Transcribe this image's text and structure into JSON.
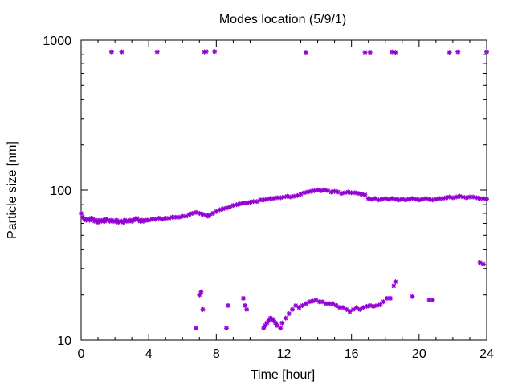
{
  "chart_data": {
    "type": "scatter",
    "title": "Modes location (5/9/1)",
    "xlabel": "Time [hour]",
    "ylabel": "Particle size [nm]",
    "xlim": [
      0,
      24
    ],
    "ylim": [
      10,
      1000
    ],
    "yscale": "log",
    "grid": false,
    "legend": "none",
    "marker_color": "#9400d3",
    "x_ticks": [
      0,
      4,
      8,
      12,
      16,
      20,
      24
    ],
    "x_tick_labels": [
      "0",
      "4",
      "8",
      "12",
      "16",
      "20",
      "24"
    ],
    "y_ticks": [
      10,
      100,
      1000
    ],
    "y_tick_labels": [
      "10",
      "100",
      "1000"
    ],
    "series": [
      {
        "points": [
          [
            0.0,
            70
          ],
          [
            0.1,
            66
          ],
          [
            0.2,
            64
          ],
          [
            0.3,
            63
          ],
          [
            0.4,
            64
          ],
          [
            0.5,
            63
          ],
          [
            0.6,
            65
          ],
          [
            0.7,
            64
          ],
          [
            0.8,
            62
          ],
          [
            0.9,
            63
          ],
          [
            1.0,
            61
          ],
          [
            1.1,
            63
          ],
          [
            1.2,
            62
          ],
          [
            1.3,
            63
          ],
          [
            1.4,
            62
          ],
          [
            1.5,
            64
          ],
          [
            1.6,
            63
          ],
          [
            1.7,
            62
          ],
          [
            1.8,
            63
          ],
          [
            1.9,
            62
          ],
          [
            2.0,
            62
          ],
          [
            2.1,
            63
          ],
          [
            2.2,
            61
          ],
          [
            2.3,
            62
          ],
          [
            2.4,
            62
          ],
          [
            2.5,
            61
          ],
          [
            2.6,
            63
          ],
          [
            2.7,
            62
          ],
          [
            2.8,
            62
          ],
          [
            2.9,
            63
          ],
          [
            3.0,
            62
          ],
          [
            3.1,
            63
          ],
          [
            3.2,
            64
          ],
          [
            3.3,
            65
          ],
          [
            3.4,
            63
          ],
          [
            3.5,
            62
          ],
          [
            3.6,
            63
          ],
          [
            3.7,
            62
          ],
          [
            3.8,
            63
          ],
          [
            3.9,
            63
          ],
          [
            4.0,
            63
          ],
          [
            4.2,
            64
          ],
          [
            4.4,
            64
          ],
          [
            4.6,
            65
          ],
          [
            4.8,
            64
          ],
          [
            5.0,
            65
          ],
          [
            5.2,
            65
          ],
          [
            5.4,
            66
          ],
          [
            5.6,
            66
          ],
          [
            5.8,
            66
          ],
          [
            6.0,
            67
          ],
          [
            6.2,
            67
          ],
          [
            6.4,
            69
          ],
          [
            6.6,
            70
          ],
          [
            6.8,
            71
          ],
          [
            7.0,
            70
          ],
          [
            7.2,
            69
          ],
          [
            7.4,
            68
          ],
          [
            7.5,
            67
          ],
          [
            7.6,
            68
          ],
          [
            7.8,
            70
          ],
          [
            8.0,
            72
          ],
          [
            8.2,
            74
          ],
          [
            8.4,
            75
          ],
          [
            8.6,
            76
          ],
          [
            8.8,
            77
          ],
          [
            9.0,
            79
          ],
          [
            9.2,
            80
          ],
          [
            9.4,
            81
          ],
          [
            9.6,
            82
          ],
          [
            9.8,
            82
          ],
          [
            10.0,
            83
          ],
          [
            10.2,
            84
          ],
          [
            10.4,
            84
          ],
          [
            10.6,
            86
          ],
          [
            10.8,
            86
          ],
          [
            11.0,
            87
          ],
          [
            11.2,
            88
          ],
          [
            11.4,
            88
          ],
          [
            11.6,
            89
          ],
          [
            11.8,
            89
          ],
          [
            12.0,
            90
          ],
          [
            12.2,
            91
          ],
          [
            12.4,
            90
          ],
          [
            12.6,
            91
          ],
          [
            12.8,
            92
          ],
          [
            13.0,
            94
          ],
          [
            13.2,
            96
          ],
          [
            13.4,
            97
          ],
          [
            13.6,
            98
          ],
          [
            13.8,
            99
          ],
          [
            14.0,
            100
          ],
          [
            14.2,
            99
          ],
          [
            14.4,
            100
          ],
          [
            14.6,
            99
          ],
          [
            14.8,
            97
          ],
          [
            15.0,
            98
          ],
          [
            15.2,
            97
          ],
          [
            15.4,
            95
          ],
          [
            15.6,
            96
          ],
          [
            15.8,
            97
          ],
          [
            16.0,
            96
          ],
          [
            16.2,
            96
          ],
          [
            16.4,
            95
          ],
          [
            16.6,
            94
          ],
          [
            16.8,
            93
          ],
          [
            17.0,
            88
          ],
          [
            17.2,
            87
          ],
          [
            17.4,
            88
          ],
          [
            17.6,
            86
          ],
          [
            17.8,
            87
          ],
          [
            18.0,
            88
          ],
          [
            18.2,
            87
          ],
          [
            18.4,
            88
          ],
          [
            18.6,
            87
          ],
          [
            18.8,
            86
          ],
          [
            19.0,
            87
          ],
          [
            19.2,
            86
          ],
          [
            19.4,
            87
          ],
          [
            19.6,
            88
          ],
          [
            19.8,
            87
          ],
          [
            20.0,
            86
          ],
          [
            20.2,
            87
          ],
          [
            20.4,
            88
          ],
          [
            20.6,
            87
          ],
          [
            20.8,
            86
          ],
          [
            21.0,
            87
          ],
          [
            21.2,
            88
          ],
          [
            21.4,
            88
          ],
          [
            21.6,
            89
          ],
          [
            21.8,
            90
          ],
          [
            22.0,
            89
          ],
          [
            22.2,
            90
          ],
          [
            22.4,
            91
          ],
          [
            22.6,
            90
          ],
          [
            22.8,
            89
          ],
          [
            23.0,
            90
          ],
          [
            23.2,
            90
          ],
          [
            23.4,
            89
          ],
          [
            23.6,
            88
          ],
          [
            23.8,
            88
          ],
          [
            24.0,
            87
          ],
          [
            1.8,
            835
          ],
          [
            2.4,
            835
          ],
          [
            4.5,
            835
          ],
          [
            7.3,
            835
          ],
          [
            7.4,
            840
          ],
          [
            7.9,
            840
          ],
          [
            13.3,
            830
          ],
          [
            16.8,
            830
          ],
          [
            17.1,
            830
          ],
          [
            18.4,
            835
          ],
          [
            18.6,
            830
          ],
          [
            21.8,
            830
          ],
          [
            22.3,
            835
          ],
          [
            24.0,
            835
          ],
          [
            6.8,
            12
          ],
          [
            7.0,
            20
          ],
          [
            7.1,
            21
          ],
          [
            7.2,
            16
          ],
          [
            8.6,
            12
          ],
          [
            8.7,
            17
          ],
          [
            9.6,
            19
          ],
          [
            9.7,
            17
          ],
          [
            9.8,
            16
          ],
          [
            10.8,
            12
          ],
          [
            10.9,
            12.5
          ],
          [
            11.0,
            13
          ],
          [
            11.1,
            13.5
          ],
          [
            11.2,
            14
          ],
          [
            11.3,
            13.8
          ],
          [
            11.4,
            13.5
          ],
          [
            11.5,
            13
          ],
          [
            11.6,
            12.5
          ],
          [
            11.8,
            12
          ],
          [
            11.9,
            13
          ],
          [
            12.1,
            14
          ],
          [
            12.3,
            15
          ],
          [
            12.5,
            16
          ],
          [
            12.7,
            17
          ],
          [
            12.9,
            16.5
          ],
          [
            13.1,
            17
          ],
          [
            13.3,
            17.5
          ],
          [
            13.5,
            18
          ],
          [
            13.7,
            18.2
          ],
          [
            13.9,
            18.5
          ],
          [
            14.1,
            18
          ],
          [
            14.3,
            18
          ],
          [
            14.5,
            17.5
          ],
          [
            14.7,
            17.5
          ],
          [
            14.9,
            17.5
          ],
          [
            15.1,
            17
          ],
          [
            15.3,
            16.5
          ],
          [
            15.5,
            16.5
          ],
          [
            15.7,
            16
          ],
          [
            15.9,
            15.5
          ],
          [
            16.1,
            16
          ],
          [
            16.3,
            16.5
          ],
          [
            16.5,
            16
          ],
          [
            16.7,
            16.5
          ],
          [
            16.9,
            16.8
          ],
          [
            17.1,
            17
          ],
          [
            17.3,
            16.8
          ],
          [
            17.5,
            17
          ],
          [
            17.7,
            17.2
          ],
          [
            17.9,
            18
          ],
          [
            18.1,
            19
          ],
          [
            18.3,
            19
          ],
          [
            18.5,
            23
          ],
          [
            18.6,
            24.5
          ],
          [
            19.6,
            19.5
          ],
          [
            20.6,
            18.5
          ],
          [
            20.8,
            18.5
          ],
          [
            23.6,
            33
          ],
          [
            23.8,
            32
          ]
        ]
      }
    ]
  }
}
